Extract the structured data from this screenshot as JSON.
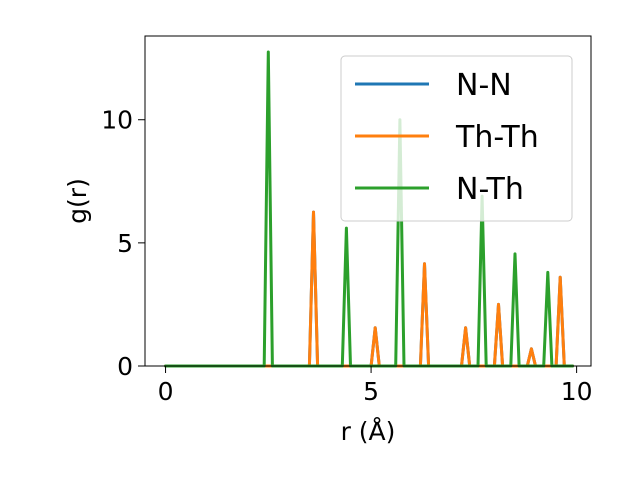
{
  "chart_data": {
    "type": "line",
    "title": "",
    "xlabel": "r (Å)",
    "ylabel": "g(r)",
    "xlim": [
      -0.5,
      10.35
    ],
    "ylim": [
      0,
      13.4
    ],
    "xticks": [
      0,
      5,
      10
    ],
    "yticks": [
      0,
      5,
      10
    ],
    "grid": false,
    "legend": {
      "placement": "top-right"
    },
    "series": [
      {
        "name": "N-N",
        "color": "#1f77b4",
        "peaks": [
          [
            3.6,
            6.25
          ],
          [
            5.1,
            1.55
          ],
          [
            6.3,
            4.15
          ],
          [
            7.3,
            1.55
          ],
          [
            8.1,
            2.5
          ],
          [
            8.9,
            0.7
          ],
          [
            9.6,
            3.6
          ]
        ]
      },
      {
        "name": "Th-Th",
        "color": "#ff7f0e",
        "peaks": [
          [
            3.6,
            6.25
          ],
          [
            5.1,
            1.55
          ],
          [
            6.3,
            4.15
          ],
          [
            7.3,
            1.55
          ],
          [
            8.1,
            2.5
          ],
          [
            8.9,
            0.7
          ],
          [
            9.6,
            3.6
          ]
        ]
      },
      {
        "name": "N-Th",
        "color": "#2ca02c",
        "peaks": [
          [
            2.5,
            12.75
          ],
          [
            4.4,
            5.6
          ],
          [
            5.7,
            10.0
          ],
          [
            7.7,
            6.9
          ],
          [
            8.5,
            4.55
          ],
          [
            9.3,
            3.8
          ]
        ]
      }
    ],
    "r_range": [
      0,
      9.9
    ]
  }
}
